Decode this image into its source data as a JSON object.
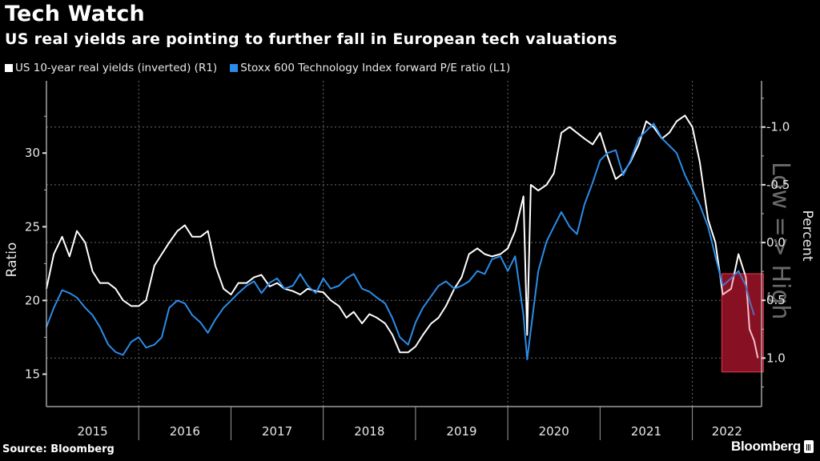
{
  "header": {
    "title": "Tech Watch",
    "subtitle": "US real yields are pointing to further fall in European tech valuations"
  },
  "footer": {
    "source": "Source: Bloomberg",
    "brand": "Bloomberg"
  },
  "chart_data": {
    "type": "line",
    "title": "Tech Watch",
    "subtitle": "US real yields are pointing to further fall in European tech valuations",
    "legend_position": "top-left",
    "xlabel": "",
    "x_tick_labels": [
      "2015",
      "2016",
      "2017",
      "2018",
      "2019",
      "2020",
      "2021",
      "2022"
    ],
    "x_range": [
      2015.0,
      2022.75
    ],
    "y_left": {
      "label": "Ratio",
      "ticks": [
        15,
        20,
        25,
        30
      ],
      "range": [
        12.8,
        34.9
      ]
    },
    "y_right": {
      "label": "Percent",
      "ticks": [
        -1.0,
        -0.5,
        0.0,
        0.5,
        1.0
      ],
      "tick_labels": [
        "-1.0",
        "-0.5",
        "0.0",
        "0.5",
        "1.0"
      ],
      "range": [
        -1.4,
        1.42
      ],
      "inverted": true
    },
    "annotation": {
      "text": "Low => High",
      "highlight_box": {
        "x_range": [
          2022.32,
          2022.77
        ],
        "y_right_range": [
          0.27,
          1.12
        ]
      }
    },
    "grid": true,
    "series": [
      {
        "name": "US 10-year real yields (inverted) (R1)",
        "axis": "right",
        "color": "#ffffff",
        "x": [
          2015.0,
          2015.08,
          2015.17,
          2015.25,
          2015.33,
          2015.42,
          2015.5,
          2015.58,
          2015.67,
          2015.75,
          2015.83,
          2015.92,
          2016.0,
          2016.08,
          2016.17,
          2016.25,
          2016.33,
          2016.42,
          2016.5,
          2016.58,
          2016.67,
          2016.75,
          2016.83,
          2016.92,
          2017.0,
          2017.08,
          2017.17,
          2017.25,
          2017.33,
          2017.42,
          2017.5,
          2017.58,
          2017.67,
          2017.75,
          2017.83,
          2017.92,
          2018.0,
          2018.08,
          2018.17,
          2018.25,
          2018.33,
          2018.42,
          2018.5,
          2018.58,
          2018.67,
          2018.75,
          2018.83,
          2018.92,
          2019.0,
          2019.08,
          2019.17,
          2019.25,
          2019.33,
          2019.42,
          2019.5,
          2019.58,
          2019.67,
          2019.75,
          2019.83,
          2019.92,
          2020.0,
          2020.08,
          2020.17,
          2020.21,
          2020.25,
          2020.33,
          2020.42,
          2020.5,
          2020.58,
          2020.67,
          2020.75,
          2020.83,
          2020.92,
          2021.0,
          2021.08,
          2021.17,
          2021.25,
          2021.33,
          2021.42,
          2021.5,
          2021.58,
          2021.67,
          2021.75,
          2021.83,
          2021.92,
          2022.0,
          2022.08,
          2022.17,
          2022.25,
          2022.33,
          2022.42,
          2022.5,
          2022.58,
          2022.62,
          2022.67,
          2022.71
        ],
        "y": [
          0.4,
          0.1,
          -0.05,
          0.12,
          -0.1,
          0.0,
          0.25,
          0.35,
          0.35,
          0.4,
          0.5,
          0.55,
          0.55,
          0.5,
          0.2,
          0.1,
          0.0,
          -0.1,
          -0.15,
          -0.05,
          -0.05,
          -0.1,
          0.2,
          0.4,
          0.45,
          0.35,
          0.35,
          0.3,
          0.28,
          0.38,
          0.35,
          0.4,
          0.42,
          0.45,
          0.4,
          0.42,
          0.43,
          0.5,
          0.55,
          0.65,
          0.6,
          0.7,
          0.62,
          0.65,
          0.7,
          0.8,
          0.95,
          0.95,
          0.9,
          0.8,
          0.7,
          0.65,
          0.55,
          0.4,
          0.3,
          0.1,
          0.05,
          0.1,
          0.12,
          0.1,
          0.05,
          -0.1,
          -0.4,
          0.8,
          -0.5,
          -0.45,
          -0.5,
          -0.6,
          -0.95,
          -1.0,
          -0.95,
          -0.9,
          -0.85,
          -0.95,
          -0.75,
          -0.55,
          -0.6,
          -0.7,
          -0.85,
          -1.05,
          -1.0,
          -0.9,
          -0.95,
          -1.05,
          -1.1,
          -1.0,
          -0.7,
          -0.2,
          0.0,
          0.45,
          0.4,
          0.1,
          0.3,
          0.75,
          0.85,
          1.0
        ]
      },
      {
        "name": "Stoxx 600 Technology Index forward P/E ratio (L1)",
        "axis": "left",
        "color": "#2a8ce8",
        "x": [
          2015.0,
          2015.08,
          2015.17,
          2015.25,
          2015.33,
          2015.42,
          2015.5,
          2015.58,
          2015.67,
          2015.75,
          2015.83,
          2015.92,
          2016.0,
          2016.08,
          2016.17,
          2016.25,
          2016.33,
          2016.42,
          2016.5,
          2016.58,
          2016.67,
          2016.75,
          2016.83,
          2016.92,
          2017.0,
          2017.08,
          2017.17,
          2017.25,
          2017.33,
          2017.42,
          2017.5,
          2017.58,
          2017.67,
          2017.75,
          2017.83,
          2017.92,
          2018.0,
          2018.08,
          2018.17,
          2018.25,
          2018.33,
          2018.42,
          2018.5,
          2018.58,
          2018.67,
          2018.75,
          2018.83,
          2018.92,
          2019.0,
          2019.08,
          2019.17,
          2019.25,
          2019.33,
          2019.42,
          2019.5,
          2019.58,
          2019.67,
          2019.75,
          2019.83,
          2019.92,
          2020.0,
          2020.08,
          2020.17,
          2020.21,
          2020.25,
          2020.33,
          2020.42,
          2020.5,
          2020.58,
          2020.67,
          2020.75,
          2020.83,
          2020.92,
          2021.0,
          2021.08,
          2021.17,
          2021.25,
          2021.33,
          2021.42,
          2021.5,
          2021.58,
          2021.67,
          2021.75,
          2021.83,
          2021.92,
          2022.0,
          2022.08,
          2022.17,
          2022.25,
          2022.33,
          2022.42,
          2022.5,
          2022.58,
          2022.62,
          2022.67
        ],
        "y": [
          18.2,
          19.5,
          20.7,
          20.5,
          20.2,
          19.5,
          19.0,
          18.2,
          17.0,
          16.5,
          16.3,
          17.2,
          17.5,
          16.8,
          17.0,
          17.5,
          19.5,
          20.0,
          19.8,
          19.0,
          18.5,
          17.8,
          18.7,
          19.5,
          20.0,
          20.5,
          21.0,
          21.3,
          20.5,
          21.2,
          21.5,
          20.8,
          21.0,
          21.8,
          21.0,
          20.5,
          21.5,
          20.8,
          21.0,
          21.5,
          21.8,
          20.8,
          20.6,
          20.2,
          19.8,
          18.8,
          17.5,
          17.0,
          18.5,
          19.5,
          20.3,
          21.0,
          21.3,
          20.8,
          21.0,
          21.3,
          22.0,
          21.8,
          22.8,
          23.0,
          22.0,
          23.0,
          19.0,
          16.0,
          18.0,
          22.0,
          24.0,
          25.0,
          26.0,
          25.0,
          24.5,
          26.5,
          28.0,
          29.5,
          30.0,
          30.2,
          28.5,
          29.5,
          31.0,
          31.5,
          32.0,
          31.0,
          30.5,
          30.0,
          28.5,
          27.5,
          26.5,
          25.0,
          23.0,
          21.0,
          21.5,
          22.0,
          21.0,
          20.0,
          19.0
        ]
      }
    ]
  }
}
